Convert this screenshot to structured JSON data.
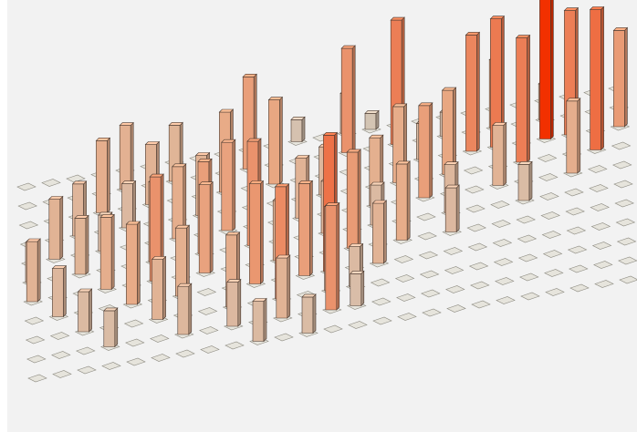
{
  "chart_data": {
    "type": "bar3d",
    "value_scale": "normalized",
    "color_scale": {
      "low": "#d9d4c8",
      "mid": "#f4b48e",
      "high": "#ff3300"
    },
    "background": "#f2f2f2",
    "bars": [
      {
        "row": 0,
        "col": 11,
        "value": 0.11
      },
      {
        "row": 0,
        "col": 13,
        "value": 0.2
      },
      {
        "row": 0,
        "col": 14,
        "value": 0.08
      },
      {
        "row": 1,
        "col": 4,
        "value": 0.32
      },
      {
        "row": 1,
        "col": 6,
        "value": 0.28
      },
      {
        "row": 1,
        "col": 9,
        "value": 0.46
      },
      {
        "row": 1,
        "col": 13,
        "value": 0.52
      },
      {
        "row": 1,
        "col": 15,
        "value": 0.62
      },
      {
        "row": 1,
        "col": 17,
        "value": 0.12
      },
      {
        "row": 1,
        "col": 19,
        "value": 0.34
      },
      {
        "row": 1,
        "col": 21,
        "value": 0.18
      },
      {
        "row": 2,
        "col": 3,
        "value": 0.36
      },
      {
        "row": 2,
        "col": 5,
        "value": 0.3
      },
      {
        "row": 2,
        "col": 8,
        "value": 0.4
      },
      {
        "row": 2,
        "col": 10,
        "value": 0.42
      },
      {
        "row": 2,
        "col": 16,
        "value": 0.18
      },
      {
        "row": 2,
        "col": 18,
        "value": 0.58
      },
      {
        "row": 2,
        "col": 19,
        "value": 0.64
      },
      {
        "row": 2,
        "col": 21,
        "value": 1.0
      },
      {
        "row": 2,
        "col": 22,
        "value": 0.62
      },
      {
        "row": 2,
        "col": 24,
        "value": 0.48
      },
      {
        "row": 3,
        "col": 2,
        "value": 0.26
      },
      {
        "row": 3,
        "col": 4,
        "value": 0.22
      },
      {
        "row": 3,
        "col": 7,
        "value": 0.3
      },
      {
        "row": 3,
        "col": 12,
        "value": 0.24
      },
      {
        "row": 3,
        "col": 15,
        "value": 0.38
      },
      {
        "row": 3,
        "col": 17,
        "value": 0.42
      },
      {
        "row": 3,
        "col": 20,
        "value": 0.62
      },
      {
        "row": 3,
        "col": 23,
        "value": 0.7
      },
      {
        "row": 4,
        "col": 1,
        "value": 0.3
      },
      {
        "row": 4,
        "col": 3,
        "value": 0.18
      },
      {
        "row": 4,
        "col": 6,
        "value": 0.36
      },
      {
        "row": 4,
        "col": 8,
        "value": 0.44
      },
      {
        "row": 4,
        "col": 11,
        "value": 0.3
      },
      {
        "row": 4,
        "col": 14,
        "value": 0.34
      },
      {
        "row": 4,
        "col": 16,
        "value": 0.46
      },
      {
        "row": 4,
        "col": 19,
        "value": 0.3
      },
      {
        "row": 4,
        "col": 22,
        "value": 0.36
      },
      {
        "row": 5,
        "col": 0,
        "value": 0.2
      },
      {
        "row": 5,
        "col": 2,
        "value": 0.28
      },
      {
        "row": 5,
        "col": 5,
        "value": 0.4
      },
      {
        "row": 5,
        "col": 7,
        "value": 0.46
      },
      {
        "row": 5,
        "col": 9,
        "value": 0.52
      },
      {
        "row": 5,
        "col": 12,
        "value": 0.26
      },
      {
        "row": 5,
        "col": 14,
        "value": 0.2
      },
      {
        "row": 5,
        "col": 17,
        "value": 0.24
      },
      {
        "row": 5,
        "col": 20,
        "value": 0.18
      },
      {
        "row": 6,
        "col": 0,
        "value": 0.3
      },
      {
        "row": 6,
        "col": 3,
        "value": 0.36
      },
      {
        "row": 6,
        "col": 5,
        "value": 0.52
      },
      {
        "row": 6,
        "col": 7,
        "value": 0.44
      },
      {
        "row": 6,
        "col": 10,
        "value": 0.3
      },
      {
        "row": 6,
        "col": 13,
        "value": 0.48
      },
      {
        "row": 6,
        "col": 15,
        "value": 0.38
      },
      {
        "row": 6,
        "col": 17,
        "value": 0.22
      },
      {
        "row": 7,
        "col": 1,
        "value": 0.24
      },
      {
        "row": 7,
        "col": 4,
        "value": 0.4
      },
      {
        "row": 7,
        "col": 6,
        "value": 0.34
      },
      {
        "row": 7,
        "col": 9,
        "value": 0.5
      },
      {
        "row": 7,
        "col": 11,
        "value": 0.46
      },
      {
        "row": 7,
        "col": 12,
        "value": 0.68
      },
      {
        "row": 7,
        "col": 14,
        "value": 0.3
      },
      {
        "row": 8,
        "col": 2,
        "value": 0.2
      },
      {
        "row": 8,
        "col": 5,
        "value": 0.3
      },
      {
        "row": 8,
        "col": 8,
        "value": 0.36
      },
      {
        "row": 8,
        "col": 10,
        "value": 0.56
      },
      {
        "row": 8,
        "col": 12,
        "value": 0.42
      },
      {
        "row": 8,
        "col": 13,
        "value": 0.2
      },
      {
        "row": 9,
        "col": 3,
        "value": 0.18
      },
      {
        "row": 9,
        "col": 6,
        "value": 0.24
      },
      {
        "row": 9,
        "col": 8,
        "value": 0.22
      },
      {
        "row": 9,
        "col": 10,
        "value": 0.3
      },
      {
        "row": 9,
        "col": 12,
        "value": 0.52
      },
      {
        "row": 9,
        "col": 13,
        "value": 0.16
      },
      {
        "row": 10,
        "col": 9,
        "value": 0.2
      },
      {
        "row": 10,
        "col": 11,
        "value": 0.18
      }
    ]
  }
}
